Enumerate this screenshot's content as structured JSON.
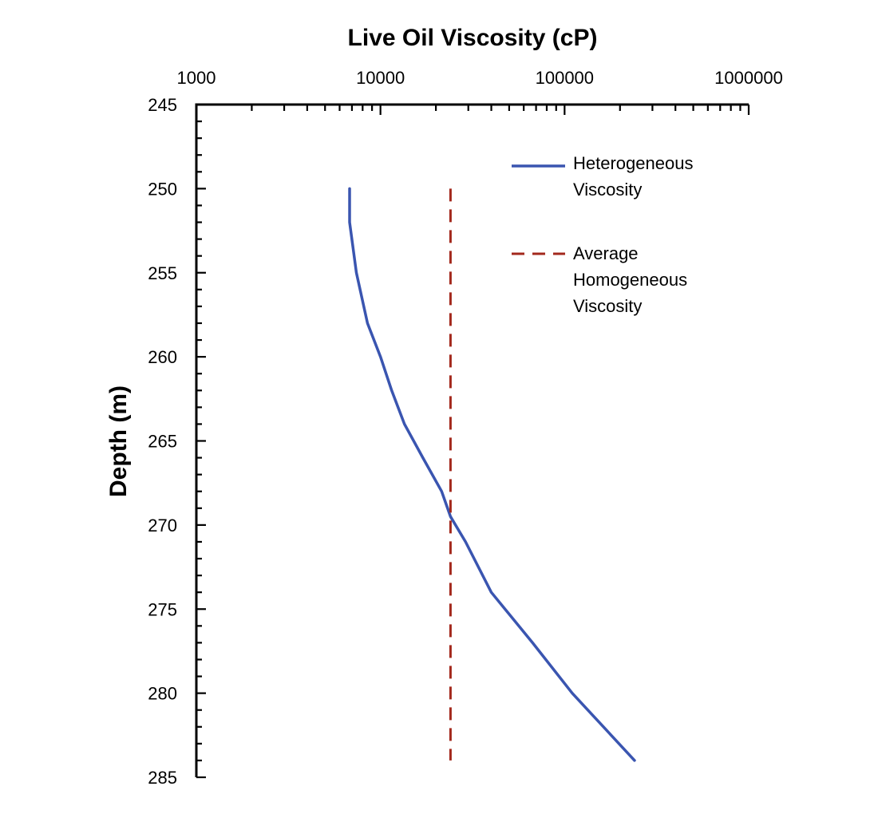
{
  "chart_data": {
    "type": "line",
    "title": "Live Oil Viscosity (cP)",
    "xlabel": "Live Oil Viscosity (cP)",
    "ylabel": "Depth (m)",
    "x_axis": {
      "scale": "log",
      "position": "top",
      "range": [
        1000,
        1000000
      ],
      "tick_labels": [
        "1000",
        "10000",
        "100000",
        "1000000"
      ],
      "tick_values": [
        1000,
        10000,
        100000,
        1000000
      ]
    },
    "y_axis": {
      "inverted": true,
      "range": [
        245,
        285
      ],
      "tick_labels": [
        "245",
        "250",
        "255",
        "260",
        "265",
        "270",
        "275",
        "280",
        "285"
      ],
      "tick_values": [
        245,
        250,
        255,
        260,
        265,
        270,
        275,
        280,
        285
      ]
    },
    "grid": false,
    "legend_position": "top-right",
    "series": [
      {
        "name": "Heterogeneous Viscosity",
        "legend_lines": [
          "Heterogeneous",
          "Viscosity"
        ],
        "color": "#3a55b0",
        "style": "solid",
        "points": [
          {
            "viscosity": 6800,
            "depth": 250
          },
          {
            "viscosity": 6800,
            "depth": 252
          },
          {
            "viscosity": 7400,
            "depth": 255
          },
          {
            "viscosity": 8500,
            "depth": 258
          },
          {
            "viscosity": 10000,
            "depth": 260
          },
          {
            "viscosity": 11500,
            "depth": 262
          },
          {
            "viscosity": 13500,
            "depth": 264
          },
          {
            "viscosity": 17000,
            "depth": 266
          },
          {
            "viscosity": 21500,
            "depth": 268
          },
          {
            "viscosity": 24000,
            "depth": 269.5
          },
          {
            "viscosity": 29000,
            "depth": 271
          },
          {
            "viscosity": 40000,
            "depth": 274
          },
          {
            "viscosity": 67000,
            "depth": 277
          },
          {
            "viscosity": 110000,
            "depth": 280
          },
          {
            "viscosity": 240000,
            "depth": 284
          }
        ]
      },
      {
        "name": "Average Homogeneous Viscosity",
        "legend_lines": [
          "Average",
          "Homogeneous",
          "Viscosity"
        ],
        "color": "#a3281c",
        "style": "dashed",
        "points": [
          {
            "viscosity": 24000,
            "depth": 250
          },
          {
            "viscosity": 24000,
            "depth": 284
          }
        ]
      }
    ]
  }
}
